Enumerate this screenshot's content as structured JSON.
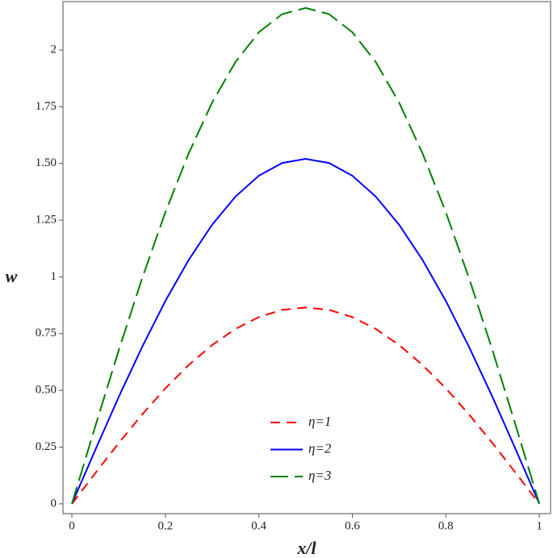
{
  "chart_data": {
    "type": "line",
    "xlabel": "x/l",
    "ylabel": "w",
    "x": [
      0,
      0.05,
      0.1,
      0.15,
      0.2,
      0.25,
      0.3,
      0.35,
      0.4,
      0.45,
      0.5,
      0.55,
      0.6,
      0.65,
      0.7,
      0.75,
      0.8,
      0.85,
      0.9,
      0.95,
      1
    ],
    "series": [
      {
        "name": "η=1",
        "color": "#ff0000",
        "dash": "12,8",
        "values": [
          0,
          0.135,
          0.267,
          0.393,
          0.509,
          0.612,
          0.7,
          0.771,
          0.823,
          0.855,
          0.865,
          0.855,
          0.823,
          0.771,
          0.7,
          0.612,
          0.509,
          0.393,
          0.267,
          0.135,
          0
        ]
      },
      {
        "name": "η=2",
        "color": "#0000ff",
        "dash": "none",
        "values": [
          0,
          0.237,
          0.47,
          0.69,
          0.894,
          1.075,
          1.23,
          1.354,
          1.446,
          1.502,
          1.52,
          1.502,
          1.446,
          1.354,
          1.23,
          1.075,
          0.894,
          0.69,
          0.47,
          0.237,
          0
        ]
      },
      {
        "name": "η=3",
        "color": "#008000",
        "dash": "22,8",
        "values": [
          0,
          0.341,
          0.675,
          0.992,
          1.285,
          1.545,
          1.768,
          1.947,
          2.078,
          2.158,
          2.185,
          2.158,
          2.078,
          1.947,
          1.768,
          1.545,
          1.285,
          0.992,
          0.675,
          0.341,
          0
        ]
      }
    ],
    "xlim": [
      -0.019,
      1.024
    ],
    "ylim": [
      -0.043,
      2.213
    ],
    "xticks": [
      0,
      0.2,
      0.4,
      0.6,
      0.8,
      1
    ],
    "yticks": [
      0,
      0.25,
      {
        "value": 0.5,
        "label": "0.50"
      },
      0.75,
      1,
      1.25,
      {
        "value": 1.5,
        "label": "1.50"
      },
      1.75,
      2
    ],
    "grid": false
  }
}
